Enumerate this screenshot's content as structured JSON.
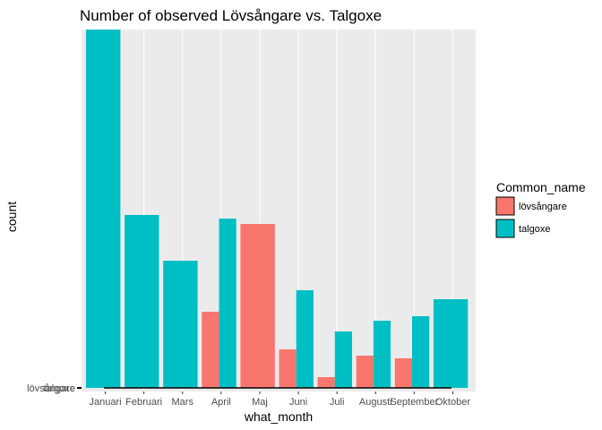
{
  "chart_data": {
    "type": "bar",
    "title": "Number of observed Lövsångare vs. Talgoxe",
    "xlabel": "what_month",
    "ylabel": "count",
    "categories": [
      "Januari",
      "Februari",
      "Mars",
      "April",
      "Maj",
      "Juni",
      "Juli",
      "Augusti",
      "September",
      "Oktober"
    ],
    "y_tick_labels": [
      "talgoxe",
      "lövsångare"
    ],
    "series": [
      {
        "name": "lövsångare",
        "color": "#F8766D",
        "values": [
          null,
          null,
          null,
          85,
          183,
          43,
          12,
          36,
          33,
          null
        ]
      },
      {
        "name": "talgoxe",
        "color": "#00BFC4",
        "values": [
          400,
          193,
          142,
          189,
          null,
          109,
          63,
          75,
          80,
          99
        ]
      }
    ],
    "legend": {
      "title": "Common_name",
      "placement": "right",
      "entries": [
        "lövsångare",
        "talgoxe"
      ]
    },
    "grid": true
  }
}
